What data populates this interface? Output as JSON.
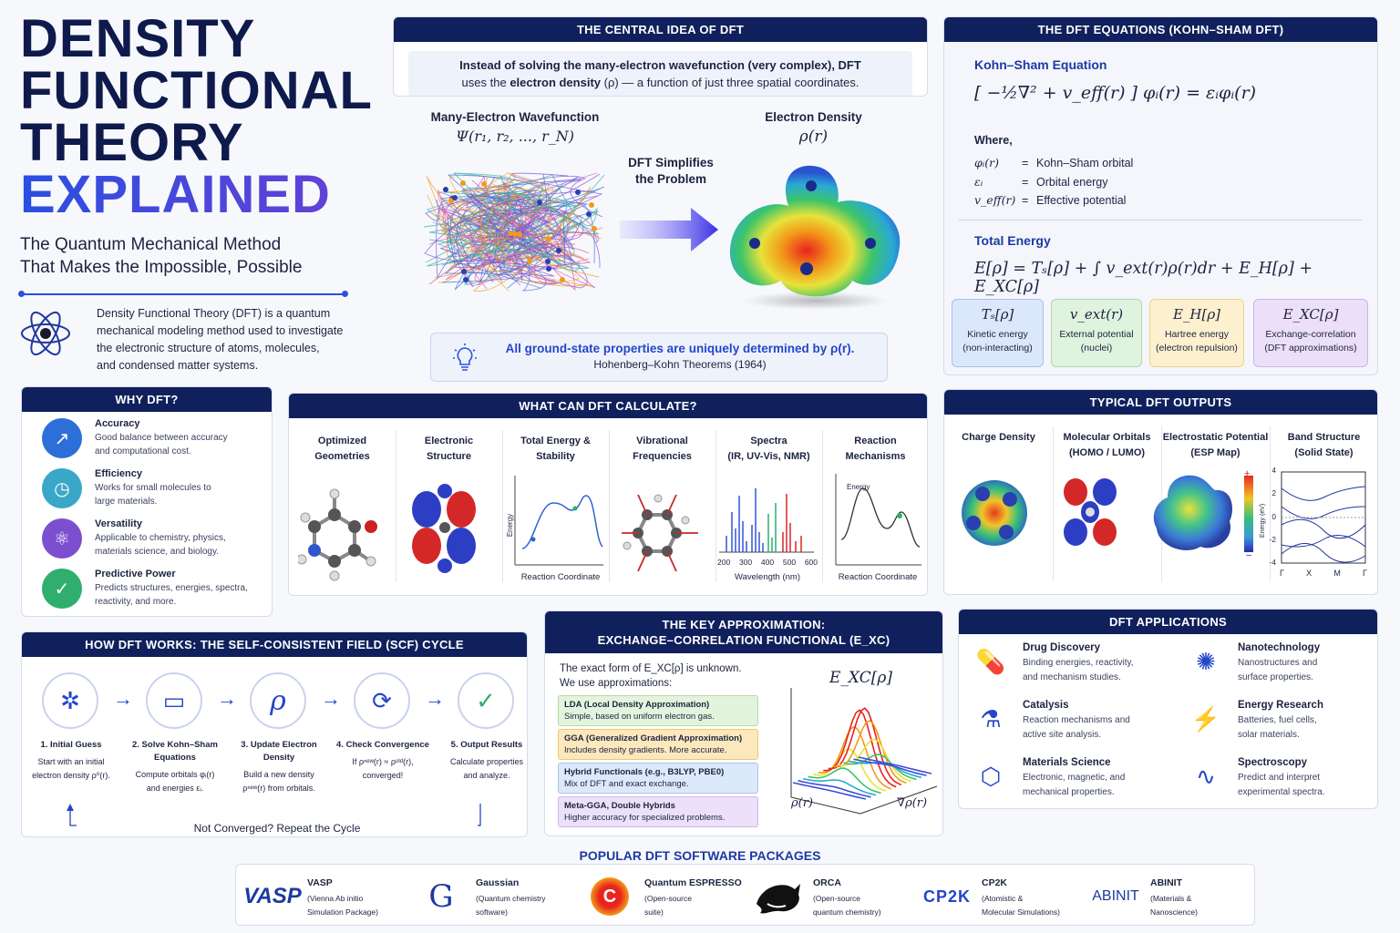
{
  "hero": {
    "title_l1": "DENSITY",
    "title_l2": "FUNCTIONAL",
    "title_l3": "THEORY",
    "title_l4": "EXPLAINED",
    "subtitle_l1": "The Quantum Mechanical Method",
    "subtitle_l2": "That Makes the Impossible, Possible",
    "intro_l1": "Density Functional Theory (DFT) is a quantum",
    "intro_l2": "mechanical modeling method used to investigate",
    "intro_l3": "the electronic structure of atoms, molecules,",
    "intro_l4": "and condensed matter systems."
  },
  "central": {
    "header": "THE CENTRAL IDEA OF DFT",
    "text_l1": "Instead of solving the many-electron wavefunction (very complex), DFT",
    "text_l2a": "uses the ",
    "text_l2b": "electron density",
    "text_l2c": " (ρ) — a function of just three spatial coordinates.",
    "wf_label": "Many-Electron Wavefunction",
    "wf_formula": "Ψ(r₁, r₂, ..., r_N)",
    "arrow_label_l1": "DFT Simplifies",
    "arrow_label_l2": "the Problem",
    "density_label": "Electron Density",
    "density_formula": "ρ(r)",
    "hk_l1": "All ground-state properties are uniquely determined by ρ(r).",
    "hk_l2": "Hohenberg–Kohn Theorems (1964)"
  },
  "equations": {
    "header": "THE DFT EQUATIONS (KOHN–SHAM DFT)",
    "ks_title": "Kohn–Sham Equation",
    "ks_formula": "[ −½∇² + v_eff(r) ] φᵢ(r) = εᵢφᵢ(r)",
    "where": "Where,",
    "defs": [
      {
        "sym": "φᵢ(r)",
        "eq": "=",
        "desc": "Kohn–Sham orbital"
      },
      {
        "sym": "εᵢ",
        "eq": "=",
        "desc": "Orbital energy"
      },
      {
        "sym": "v_eff(r)",
        "eq": "=",
        "desc": "Effective potential"
      }
    ],
    "te_title": "Total Energy",
    "te_formula": "E[ρ] = Tₛ[ρ] + ∫ v_ext(r)ρ(r)dr + E_H[ρ] + E_XC[ρ]",
    "terms": [
      {
        "sym": "Tₛ[ρ]",
        "l1": "Kinetic energy",
        "l2": "(non-interacting)",
        "bg": "#dbe7fb",
        "bd": "#a9c0ee"
      },
      {
        "sym": "v_ext(r)",
        "l1": "External potential",
        "l2": "(nuclei)",
        "bg": "#dff3df",
        "bd": "#a8d9a8"
      },
      {
        "sym": "E_H[ρ]",
        "l1": "Hartree energy",
        "l2": "(electron repulsion)",
        "bg": "#fdf0cf",
        "bd": "#eed38e"
      },
      {
        "sym": "E_XC[ρ]",
        "l1": "Exchange-correlation",
        "l2": "(DFT approximations)",
        "bg": "#ece0f8",
        "bd": "#cdb2ec"
      }
    ]
  },
  "why": {
    "header": "WHY DFT?",
    "items": [
      {
        "title": "Accuracy",
        "l1": "Good balance between accuracy",
        "l2": "and computational cost.",
        "color": "#2d6fd8",
        "icon": "chart-up-icon"
      },
      {
        "title": "Efficiency",
        "l1": "Works for small molecules to",
        "l2": "large materials.",
        "color": "#3aa7c8",
        "icon": "clock-icon"
      },
      {
        "title": "Versatility",
        "l1": "Applicable to chemistry, physics,",
        "l2": "materials science, and biology.",
        "color": "#7c4fd0",
        "icon": "atom-icon"
      },
      {
        "title": "Predictive Power",
        "l1": "Predicts structures, energies, spectra,",
        "l2": "reactivity, and more.",
        "color": "#2fae6e",
        "icon": "shield-check-icon"
      }
    ]
  },
  "calc": {
    "header": "WHAT CAN DFT CALCULATE?",
    "cols": [
      {
        "l1": "Optimized",
        "l2": "Geometries"
      },
      {
        "l1": "Electronic",
        "l2": "Structure"
      },
      {
        "l1": "Total Energy &",
        "l2": "Stability"
      },
      {
        "l1": "Vibrational",
        "l2": "Frequencies"
      },
      {
        "l1": "Spectra",
        "l2": "(IR, UV-Vis, NMR)"
      },
      {
        "l1": "Reaction",
        "l2": "Mechanisms"
      }
    ],
    "energy_axis": "Energy",
    "reaction_coord": "Reaction Coordinate",
    "spectra_ticks": [
      "200",
      "300",
      "400",
      "500",
      "600"
    ],
    "wavelength": "Wavelength (nm)",
    "energy_axis2": "Energy",
    "reaction_coord2": "Reaction Coordinate"
  },
  "outputs": {
    "header": "TYPICAL DFT OUTPUTS",
    "cols": [
      {
        "l1": "Charge Density",
        "l2": ""
      },
      {
        "l1": "Molecular Orbitals",
        "l2": "(HOMO / LUMO)"
      },
      {
        "l1": "Electrostatic Potential",
        "l2": "(ESP Map)"
      },
      {
        "l1": "Band Structure",
        "l2": "(Solid State)"
      }
    ],
    "esp_plus": "+",
    "esp_minus": "−",
    "band_yticks": [
      "4",
      "2",
      "0",
      "-2",
      "-4"
    ],
    "band_ylabel": "Energy (eV)",
    "band_kpoints": [
      "Γ",
      "X",
      "M",
      "Γ"
    ]
  },
  "scf": {
    "header": "HOW DFT WORKS: THE SELF-CONSISTENT FIELD (SCF) CYCLE",
    "steps": [
      {
        "t1": "1. Initial Guess",
        "t2": "",
        "d1": "Start with an initial",
        "d2": "electron density ρ⁰(r).",
        "d3": ""
      },
      {
        "t1": "2. Solve Kohn–Sham",
        "t2": "Equations",
        "d1": "Compute orbitals φᵢ(r)",
        "d2": "and energies εᵢ.",
        "d3": ""
      },
      {
        "t1": "3. Update Electron",
        "t2": "Density",
        "d1": "Build a new density",
        "d2": "ρⁿᵉʷ(r) from orbitals.",
        "d3": ""
      },
      {
        "t1": "4. Check Convergence",
        "t2": "",
        "d1": "If ρⁿᵉʷ(r) ≈ ρᵒˡᵈ(r),",
        "d2": "converged!",
        "d3": ""
      },
      {
        "t1": "5. Output Results",
        "t2": "",
        "d1": "Calculate properties",
        "d2": "and analyze.",
        "d3": ""
      }
    ],
    "rho_symbol": "ρ",
    "loop_text": "Not Converged? Repeat the Cycle"
  },
  "xc": {
    "header_l1": "THE KEY APPROXIMATION:",
    "header_l2": "EXCHANGE–CORRELATION FUNCTIONAL (E_XC)",
    "intro_l1": "The exact form of E_XC[ρ] is unknown.",
    "intro_l2": "We use approximations:",
    "approx": [
      {
        "t": "LDA (Local Density Approximation)",
        "d": "Simple, based on uniform electron gas.",
        "bg": "#e3f4dd",
        "bd": "#b4dca4"
      },
      {
        "t": "GGA (Generalized Gradient Approximation)",
        "d": "Includes density gradients. More accurate.",
        "bg": "#fbe9bd",
        "bd": "#ecc96a"
      },
      {
        "t": "Hybrid Functionals (e.g., B3LYP, PBE0)",
        "d": "Mix of DFT and exact exchange.",
        "bg": "#dce9fa",
        "bd": "#a8c5ec"
      },
      {
        "t": "Meta-GGA, Double Hybrids",
        "d": "Higher accuracy for specialized problems.",
        "bg": "#ece1f8",
        "bd": "#cfb6ec"
      }
    ],
    "surface_title": "E_XC[ρ]",
    "axis_x": "ρ(r)",
    "axis_y": "∇ρ(r)"
  },
  "apps": {
    "header": "DFT APPLICATIONS",
    "items": [
      {
        "t": "Drug Discovery",
        "l1": "Binding energies, reactivity,",
        "l2": "and mechanism studies.",
        "icon": "capsule-icon"
      },
      {
        "t": "Nanotechnology",
        "l1": "Nanostructures and",
        "l2": "surface properties.",
        "icon": "nanoparticle-icon"
      },
      {
        "t": "Catalysis",
        "l1": "Reaction mechanisms and",
        "l2": "active site analysis.",
        "icon": "flask-icon"
      },
      {
        "t": "Energy Research",
        "l1": "Batteries, fuel cells,",
        "l2": "solar materials.",
        "icon": "energy-icon"
      },
      {
        "t": "Materials Science",
        "l1": "Electronic, magnetic, and",
        "l2": "mechanical properties.",
        "icon": "crystal-icon"
      },
      {
        "t": "Spectroscopy",
        "l1": "Predict and interpret",
        "l2": "experimental spectra.",
        "icon": "waveform-icon"
      }
    ]
  },
  "software": {
    "header": "POPULAR DFT SOFTWARE PACKAGES",
    "items": [
      {
        "logo": "VASP",
        "name": "VASP",
        "l1": "(Vienna Ab initio",
        "l2": "Simulation Package)"
      },
      {
        "logo": "G",
        "name": "Gaussian",
        "l1": "(Quantum chemistry",
        "l2": "software)"
      },
      {
        "logo": "C",
        "name": "Quantum ESPRESSO",
        "l1": "(Open-source",
        "l2": "suite)"
      },
      {
        "logo": "",
        "name": "ORCA",
        "l1": "(Open-source",
        "l2": "quantum chemistry)"
      },
      {
        "logo": "CP2K",
        "name": "CP2K",
        "l1": "(Atomistic &",
        "l2": "Molecular Simulations)"
      },
      {
        "logo": "ABINIT",
        "name": "ABINIT",
        "l1": "(Materials &",
        "l2": "Nanoscience)"
      }
    ]
  }
}
